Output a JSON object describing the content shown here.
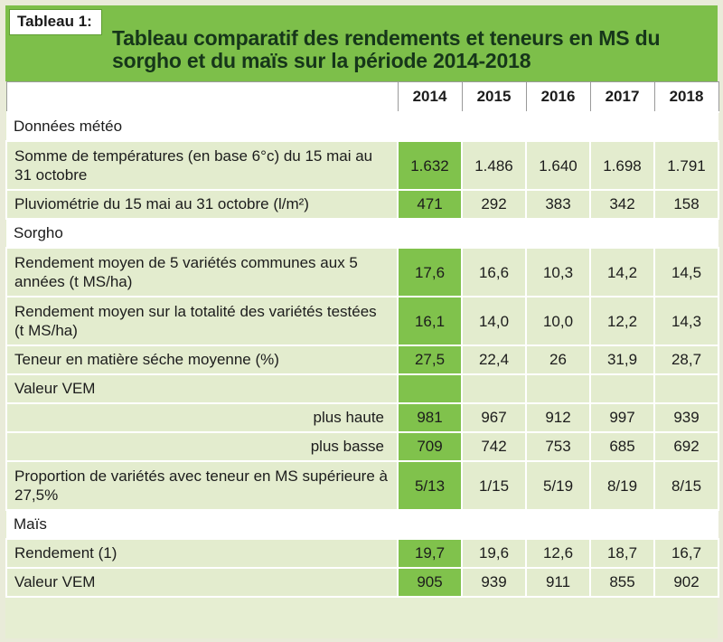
{
  "tag": "Tableau 1:",
  "title": "Tableau comparatif des rendements et teneurs en MS du sorgho et du maïs sur la période 2014-2018",
  "years": [
    "2014",
    "2015",
    "2016",
    "2017",
    "2018"
  ],
  "sections": {
    "meteo": "Données météo",
    "sorgho": "Sorgho",
    "mais": "Maïs"
  },
  "rows": {
    "temp": {
      "label": "Somme de températures (en base 6°c) du 15 mai au 31 octobre",
      "values": [
        "1.632",
        "1.486",
        "1.640",
        "1.698",
        "1.791"
      ]
    },
    "pluvio": {
      "label": "Pluviométrie du 15 mai au 31 octobre (l/m²)",
      "values": [
        "471",
        "292",
        "383",
        "342",
        "158"
      ]
    },
    "rend5": {
      "label": "Rendement moyen de 5 variétés communes aux 5 années (t MS/ha)",
      "values": [
        "17,6",
        "16,6",
        "10,3",
        "14,2",
        "14,5"
      ]
    },
    "rendtot": {
      "label": "Rendement moyen sur la totalité des variétés testées (t MS/ha)",
      "values": [
        "16,1",
        "14,0",
        "10,0",
        "12,2",
        "14,3"
      ]
    },
    "teneur": {
      "label": "Teneur en matière séche moyenne (%)",
      "values": [
        "27,5",
        "22,4",
        "26",
        "31,9",
        "28,7"
      ]
    },
    "vem": {
      "label": "Valeur VEM"
    },
    "haute": {
      "label": "plus haute",
      "values": [
        "981",
        "967",
        "912",
        "997",
        "939"
      ]
    },
    "basse": {
      "label": "plus basse",
      "values": [
        "709",
        "742",
        "753",
        "685",
        "692"
      ]
    },
    "prop": {
      "label": "Proportion de variétés avec teneur en MS supérieure à 27,5%",
      "values": [
        "5/13",
        "1/15",
        "5/19",
        "8/19",
        "8/15"
      ]
    },
    "mrend": {
      "label": "Rendement (1)",
      "values": [
        "19,7",
        "19,6",
        "12,6",
        "18,7",
        "16,7"
      ]
    },
    "mvem": {
      "label": "Valeur VEM",
      "values": [
        "905",
        "939",
        "911",
        "855",
        "902"
      ]
    }
  },
  "colors": {
    "accent": "#7dbf4a",
    "highlight": "#80c24c",
    "row_bg": "#e3ecce"
  }
}
